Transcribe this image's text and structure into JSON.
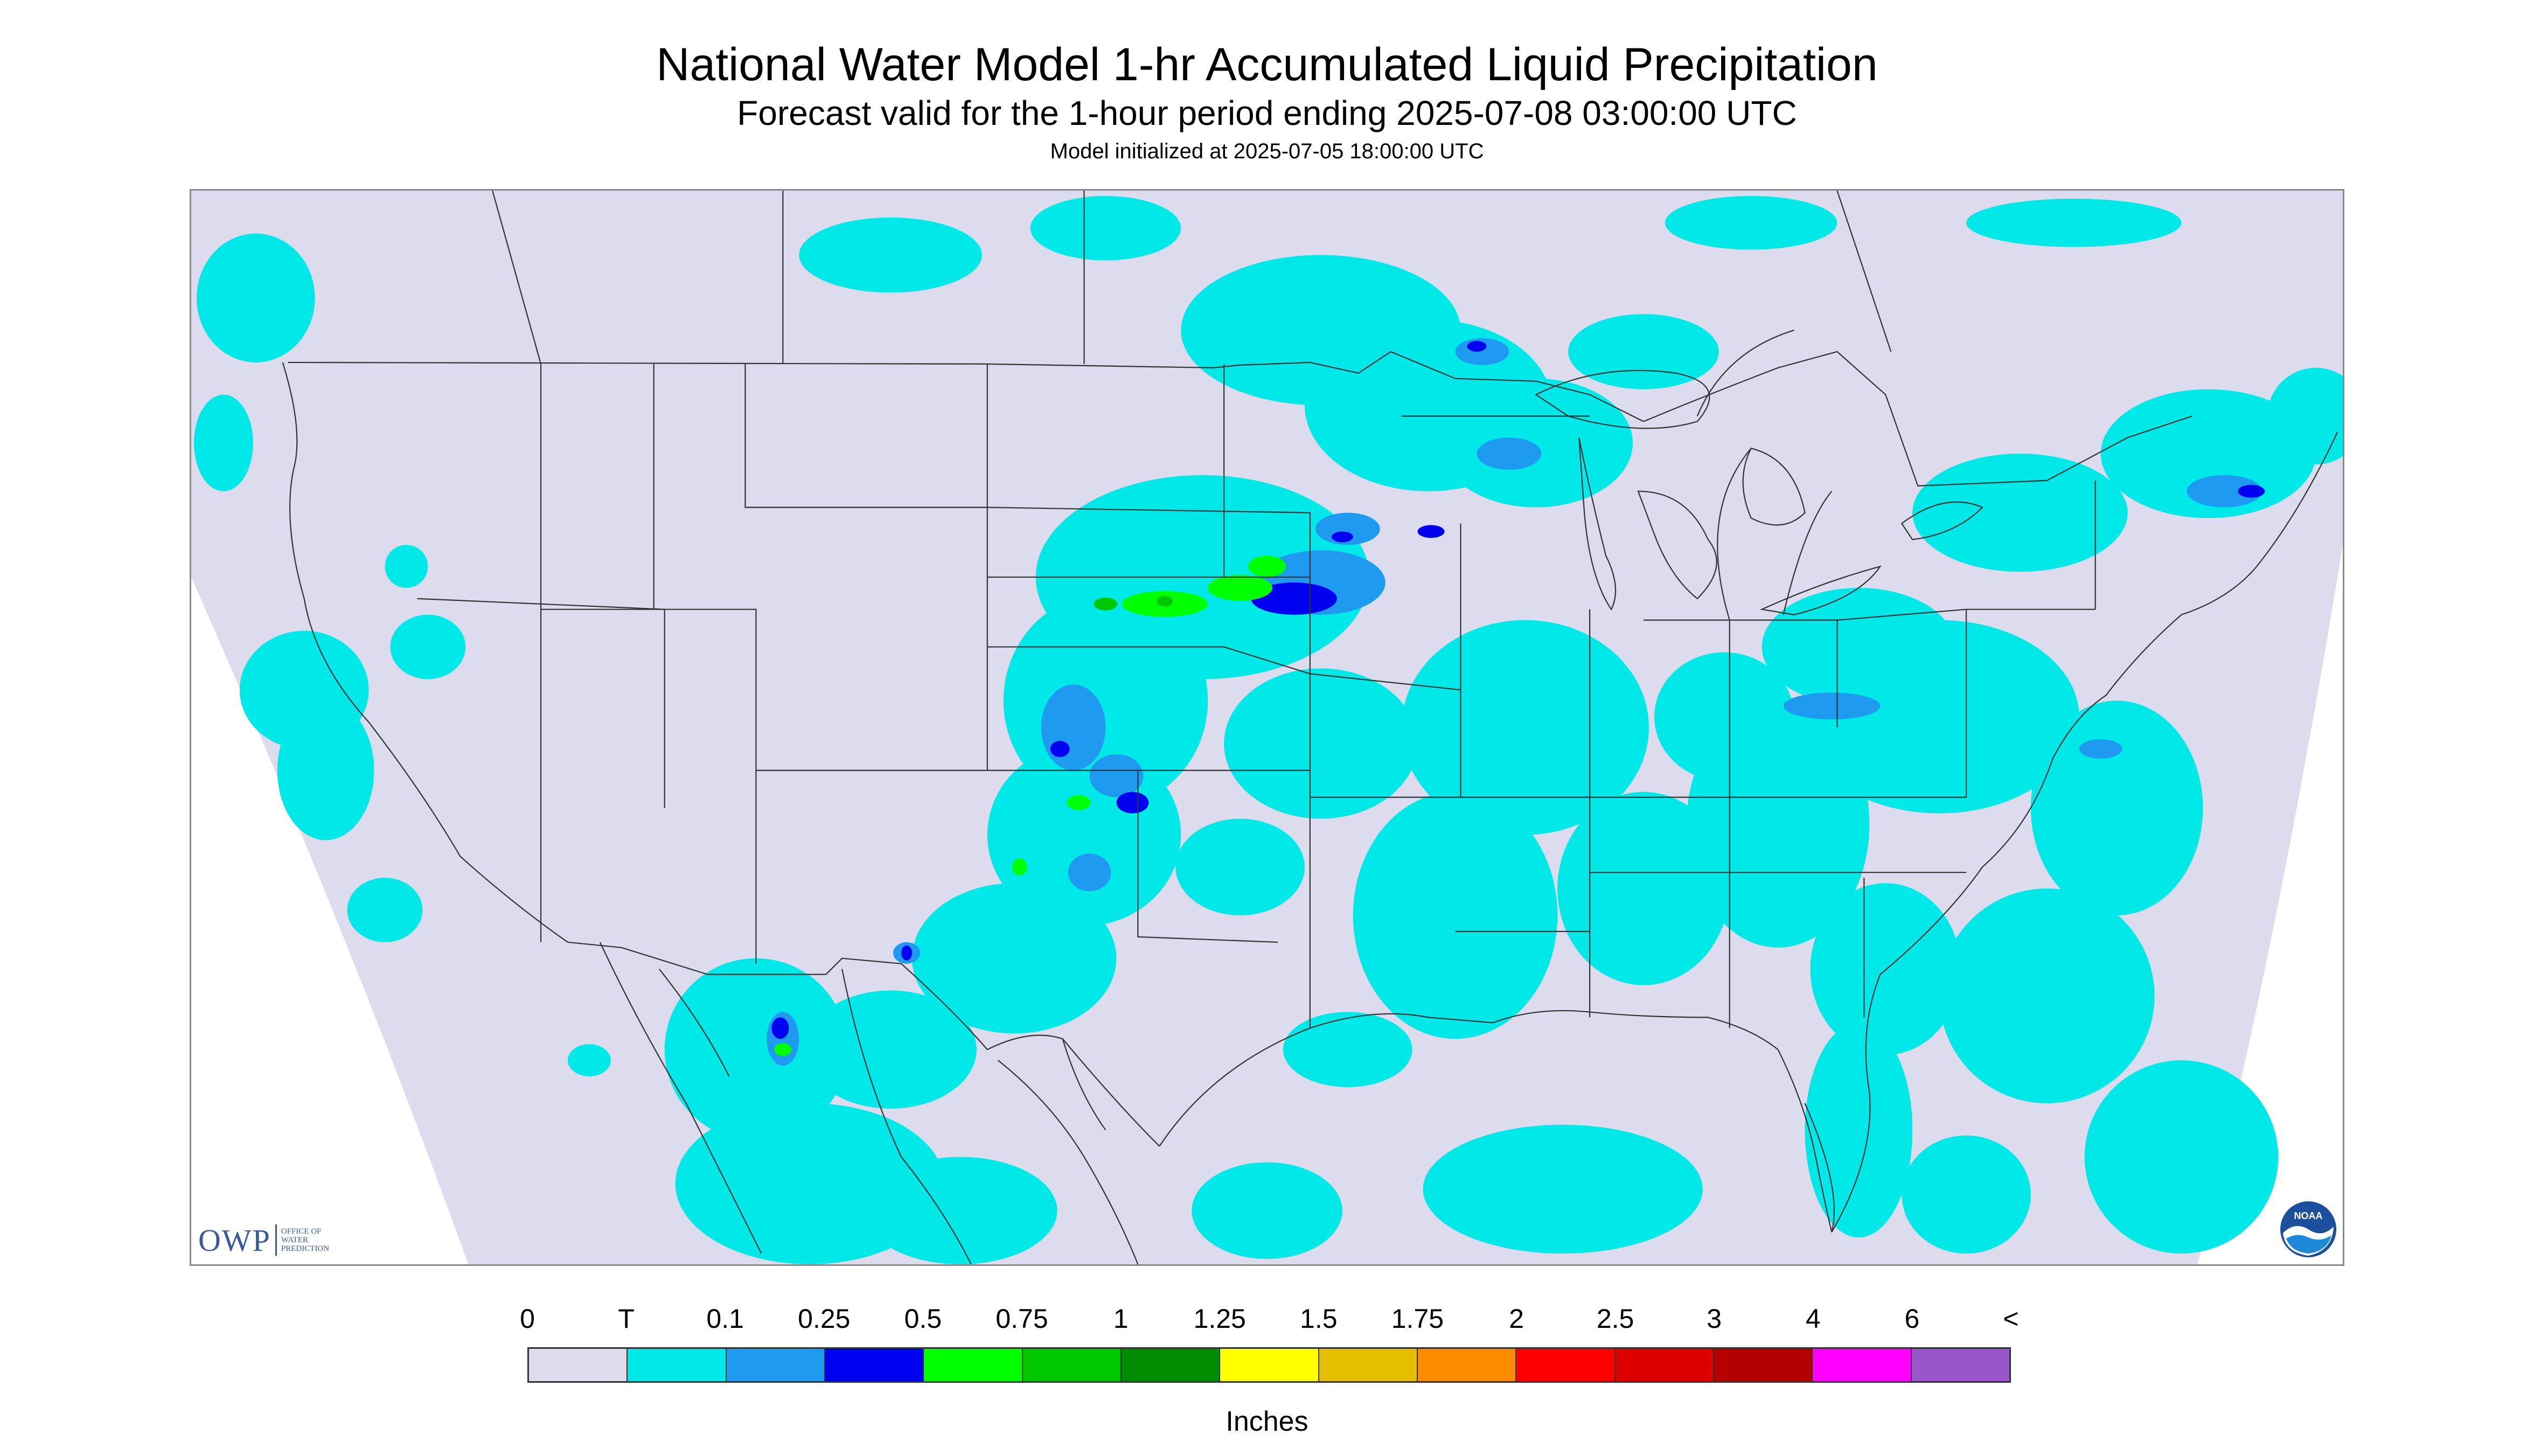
{
  "header": {
    "title": "National Water Model 1-hr Accumulated Liquid Precipitation",
    "subtitle": "Forecast valid for the 1-hour period ending 2025-07-08 03:00:00 UTC",
    "init": "Model initialized at 2025-07-05 18:00:00 UTC"
  },
  "logos": {
    "owp_main": "OWP",
    "owp_small": [
      "OFFICE OF",
      "WATER",
      "PREDICTION"
    ],
    "noaa": "NOAA"
  },
  "legend": {
    "labels": [
      "0",
      "T",
      "0.1",
      "0.25",
      "0.5",
      "0.75",
      "1",
      "1.25",
      "1.5",
      "1.75",
      "2",
      "2.5",
      "3",
      "4",
      "6",
      "<"
    ],
    "colors": [
      "#dcdcee",
      "#00e8e8",
      "#1e9bf0",
      "#0000f0",
      "#00ff00",
      "#00c800",
      "#008c00",
      "#ffff00",
      "#e6be00",
      "#ff8c00",
      "#ff0000",
      "#dc0000",
      "#b40000",
      "#ff00ff",
      "#9955cc"
    ],
    "units": "Inches"
  },
  "map_colors": {
    "background": "#dcdcee",
    "trace": "#00e8e8",
    "light": "#1e9bf0",
    "moderate": "#0000f0",
    "heavy": "#00ff00",
    "heavier": "#00c800",
    "boundary": "#333333"
  }
}
